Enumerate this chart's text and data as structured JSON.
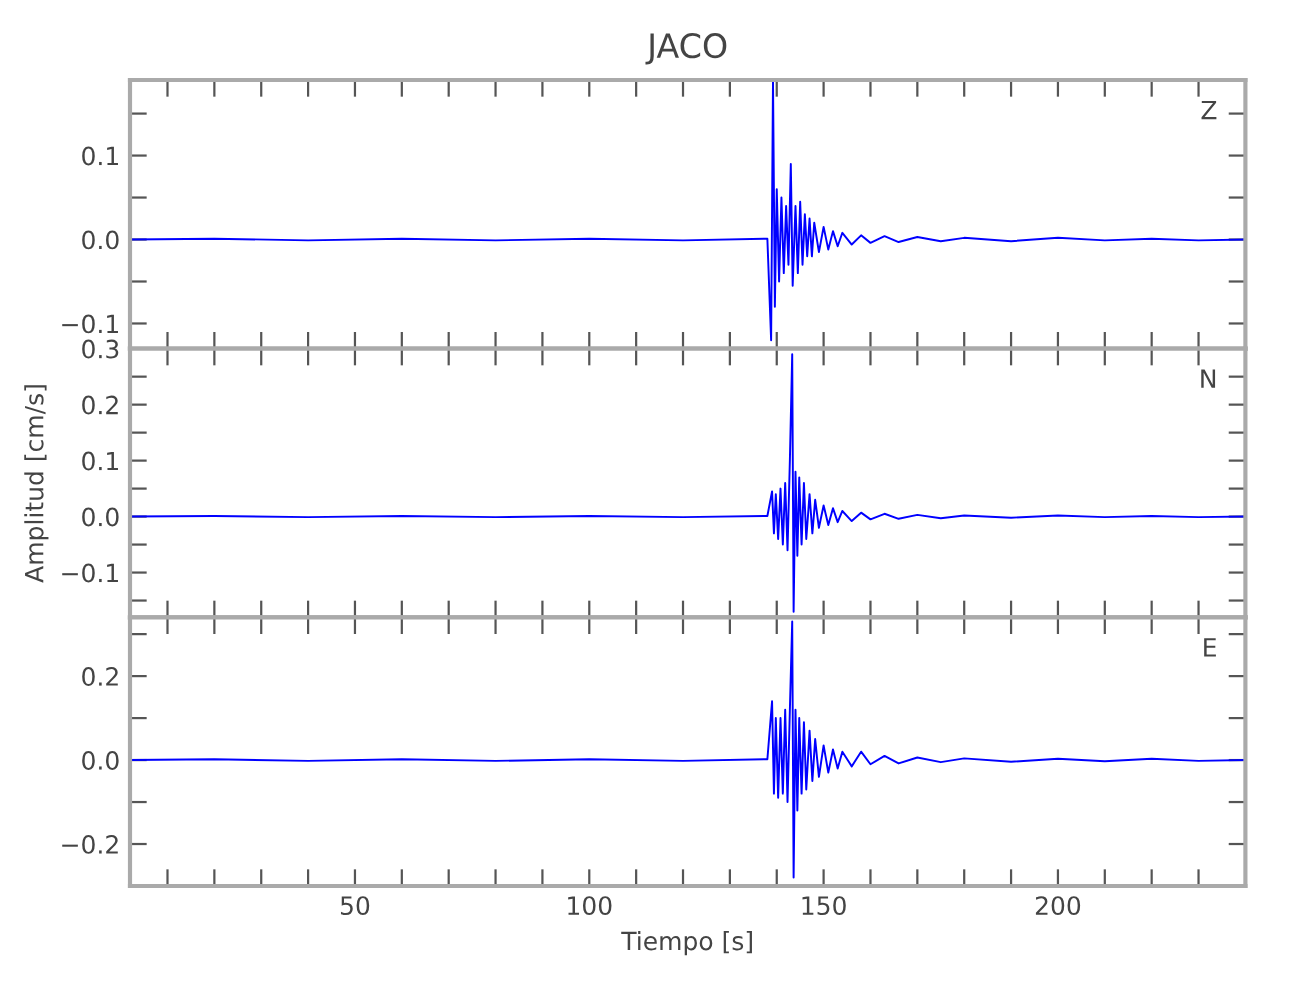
{
  "chart_data": [
    {
      "type": "line",
      "title": "JACO",
      "annotations": [
        "Z"
      ],
      "tick_labels": "y",
      "grid": false,
      "legend": false,
      "xlim": [
        2,
        240
      ],
      "xticks": [
        {
          "value": 10,
          "label": null
        },
        {
          "value": 20,
          "label": null
        },
        {
          "value": 30,
          "label": null
        },
        {
          "value": 40,
          "label": null
        },
        {
          "value": 50,
          "label": null
        },
        {
          "value": 60,
          "label": null
        },
        {
          "value": 70,
          "label": null
        },
        {
          "value": 80,
          "label": null
        },
        {
          "value": 90,
          "label": null
        },
        {
          "value": 100,
          "label": null
        },
        {
          "value": 110,
          "label": null
        },
        {
          "value": 120,
          "label": null
        },
        {
          "value": 130,
          "label": null
        },
        {
          "value": 140,
          "label": null
        },
        {
          "value": 150,
          "label": null
        },
        {
          "value": 160,
          "label": null
        },
        {
          "value": 170,
          "label": null
        },
        {
          "value": 180,
          "label": null
        },
        {
          "value": 190,
          "label": null
        },
        {
          "value": 200,
          "label": null
        },
        {
          "value": 210,
          "label": null
        },
        {
          "value": 220,
          "label": null
        },
        {
          "value": 230,
          "label": null
        }
      ],
      "ylim": [
        -0.13,
        0.19
      ],
      "yticks": [
        {
          "value": -0.1,
          "label": "−0.1"
        },
        {
          "value": -0.05,
          "label": null
        },
        {
          "value": 0.0,
          "label": "0.0"
        },
        {
          "value": 0.05,
          "label": null
        },
        {
          "value": 0.1,
          "label": "0.1"
        },
        {
          "value": 0.15,
          "label": null
        }
      ],
      "series": [
        {
          "color": "#0000ff",
          "x": [
            2,
            20,
            40,
            60,
            80,
            100,
            120,
            138,
            138.8,
            139.2,
            139.6,
            140,
            140.5,
            141,
            141.5,
            142,
            142.5,
            143,
            143.4,
            144,
            144.5,
            145,
            145.5,
            146,
            146.5,
            147,
            147.5,
            148,
            149,
            150,
            151,
            152,
            153,
            154,
            156,
            158,
            160,
            163,
            166,
            170,
            175,
            180,
            190,
            200,
            210,
            220,
            230,
            240
          ],
          "values": [
            0,
            0.001,
            -0.001,
            0.001,
            -0.001,
            0.001,
            -0.001,
            0.001,
            -0.12,
            0.19,
            -0.08,
            0.06,
            -0.05,
            0.05,
            -0.04,
            0.04,
            -0.03,
            0.09,
            -0.055,
            0.04,
            -0.04,
            0.045,
            -0.03,
            0.03,
            -0.02,
            0.025,
            -0.02,
            0.02,
            -0.015,
            0.015,
            -0.012,
            0.01,
            -0.008,
            0.008,
            -0.006,
            0.005,
            -0.004,
            0.004,
            -0.003,
            0.003,
            -0.002,
            0.002,
            -0.002,
            0.002,
            -0.001,
            0.001,
            -0.001,
            0
          ]
        }
      ]
    },
    {
      "type": "line",
      "ylabel": "Amplitud [cm/s]",
      "annotations": [
        "N"
      ],
      "tick_labels": "y",
      "grid": false,
      "legend": false,
      "xlim": [
        2,
        240
      ],
      "xticks": [
        {
          "value": 10,
          "label": null
        },
        {
          "value": 20,
          "label": null
        },
        {
          "value": 30,
          "label": null
        },
        {
          "value": 40,
          "label": null
        },
        {
          "value": 50,
          "label": null
        },
        {
          "value": 60,
          "label": null
        },
        {
          "value": 70,
          "label": null
        },
        {
          "value": 80,
          "label": null
        },
        {
          "value": 90,
          "label": null
        },
        {
          "value": 100,
          "label": null
        },
        {
          "value": 110,
          "label": null
        },
        {
          "value": 120,
          "label": null
        },
        {
          "value": 130,
          "label": null
        },
        {
          "value": 140,
          "label": null
        },
        {
          "value": 150,
          "label": null
        },
        {
          "value": 160,
          "label": null
        },
        {
          "value": 170,
          "label": null
        },
        {
          "value": 180,
          "label": null
        },
        {
          "value": 190,
          "label": null
        },
        {
          "value": 200,
          "label": null
        },
        {
          "value": 210,
          "label": null
        },
        {
          "value": 220,
          "label": null
        },
        {
          "value": 230,
          "label": null
        }
      ],
      "ylim": [
        -0.18,
        0.3
      ],
      "yticks": [
        {
          "value": -0.15,
          "label": null
        },
        {
          "value": -0.1,
          "label": "−0.1"
        },
        {
          "value": -0.05,
          "label": null
        },
        {
          "value": 0.0,
          "label": "0.0"
        },
        {
          "value": 0.05,
          "label": null
        },
        {
          "value": 0.1,
          "label": "0.1"
        },
        {
          "value": 0.15,
          "label": null
        },
        {
          "value": 0.2,
          "label": "0.2"
        },
        {
          "value": 0.25,
          "label": null
        },
        {
          "value": 0.3,
          "label": "0.3"
        }
      ],
      "series": [
        {
          "color": "#0000ff",
          "x": [
            2,
            20,
            40,
            60,
            80,
            100,
            120,
            138,
            139,
            139.4,
            139.8,
            140.3,
            140.8,
            141.3,
            141.8,
            142.3,
            142.8,
            143.3,
            143.6,
            144,
            144.4,
            144.8,
            145.3,
            145.8,
            146.3,
            147,
            147.6,
            148.2,
            149,
            150,
            151,
            152,
            153,
            154,
            156,
            158,
            160,
            163,
            166,
            170,
            175,
            180,
            190,
            200,
            210,
            220,
            230,
            240
          ],
          "values": [
            0,
            0.001,
            -0.001,
            0.001,
            -0.001,
            0.001,
            -0.001,
            0.001,
            0.045,
            -0.03,
            0.04,
            -0.04,
            0.05,
            -0.05,
            0.06,
            -0.06,
            0.1,
            0.29,
            -0.17,
            0.08,
            -0.07,
            0.07,
            -0.05,
            0.06,
            -0.04,
            0.04,
            -0.03,
            0.03,
            -0.02,
            0.02,
            -0.015,
            0.015,
            -0.01,
            0.01,
            -0.008,
            0.007,
            -0.005,
            0.005,
            -0.004,
            0.003,
            -0.003,
            0.002,
            -0.002,
            0.002,
            -0.001,
            0.001,
            -0.001,
            0
          ]
        }
      ]
    },
    {
      "type": "line",
      "xlabel": "Tiempo [s]",
      "annotations": [
        "E"
      ],
      "grid": false,
      "legend": false,
      "xlim": [
        2,
        240
      ],
      "xticks": [
        {
          "value": 10,
          "label": null
        },
        {
          "value": 20,
          "label": null
        },
        {
          "value": 30,
          "label": null
        },
        {
          "value": 40,
          "label": null
        },
        50,
        {
          "value": 60,
          "label": null
        },
        {
          "value": 70,
          "label": null
        },
        {
          "value": 80,
          "label": null
        },
        {
          "value": 90,
          "label": null
        },
        100,
        {
          "value": 110,
          "label": null
        },
        {
          "value": 120,
          "label": null
        },
        {
          "value": 130,
          "label": null
        },
        {
          "value": 140,
          "label": null
        },
        150,
        {
          "value": 160,
          "label": null
        },
        {
          "value": 170,
          "label": null
        },
        {
          "value": 180,
          "label": null
        },
        {
          "value": 190,
          "label": null
        },
        200,
        {
          "value": 210,
          "label": null
        },
        {
          "value": 220,
          "label": null
        },
        {
          "value": 230,
          "label": null
        }
      ],
      "ylim": [
        -0.3,
        0.34
      ],
      "yticks": [
        {
          "value": -0.2,
          "label": "−0.2"
        },
        {
          "value": -0.1,
          "label": null
        },
        {
          "value": 0.0,
          "label": "0.0"
        },
        {
          "value": 0.1,
          "label": null
        },
        {
          "value": 0.2,
          "label": "0.2"
        },
        {
          "value": 0.3,
          "label": null
        }
      ],
      "series": [
        {
          "color": "#0000ff",
          "x": [
            2,
            20,
            40,
            60,
            80,
            100,
            120,
            138,
            139,
            139.4,
            139.8,
            140.3,
            140.8,
            141.3,
            141.8,
            142.3,
            142.8,
            143.3,
            143.6,
            144,
            144.4,
            144.8,
            145.3,
            145.8,
            146.3,
            147,
            147.6,
            148.2,
            149,
            150,
            151,
            152,
            153,
            154,
            156,
            158,
            160,
            163,
            166,
            170,
            175,
            180,
            190,
            200,
            210,
            220,
            230,
            240
          ],
          "values": [
            0,
            0.002,
            -0.002,
            0.002,
            -0.002,
            0.002,
            -0.002,
            0.002,
            0.14,
            -0.08,
            0.1,
            -0.09,
            0.1,
            -0.08,
            0.12,
            -0.1,
            0.12,
            0.33,
            -0.28,
            0.12,
            -0.12,
            0.1,
            -0.08,
            0.09,
            -0.07,
            0.07,
            -0.05,
            0.05,
            -0.04,
            0.035,
            -0.03,
            0.025,
            -0.02,
            0.02,
            -0.015,
            0.02,
            -0.01,
            0.01,
            -0.008,
            0.006,
            -0.005,
            0.004,
            -0.004,
            0.003,
            -0.003,
            0.003,
            -0.002,
            0
          ]
        }
      ]
    }
  ]
}
